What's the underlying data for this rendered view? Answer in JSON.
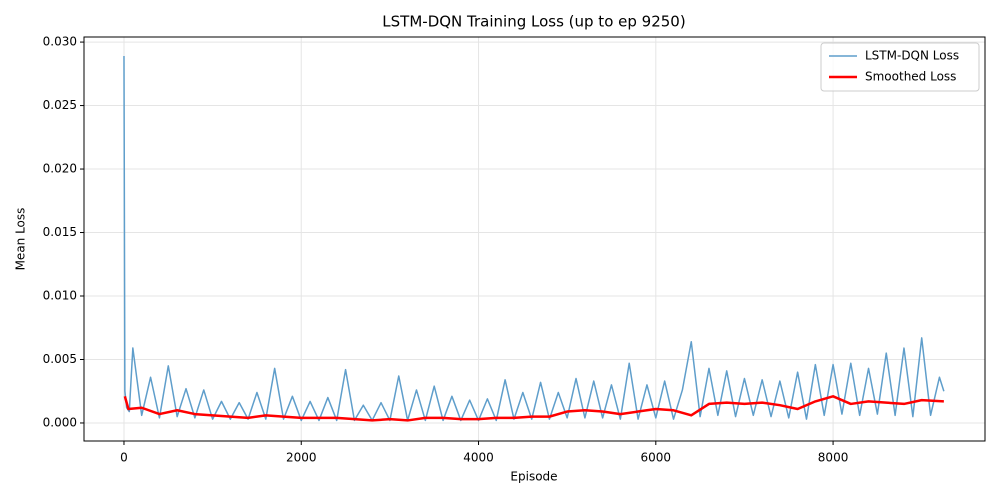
{
  "chart_data": {
    "type": "line",
    "title": "LSTM-DQN Training Loss (up to ep 9250)",
    "x_label": "Episode",
    "y_label": "Mean Loss",
    "xlim": [
      -451,
      9714
    ],
    "ylim": [
      -0.00142,
      0.0304
    ],
    "xticks": [
      0,
      2000,
      4000,
      6000,
      8000
    ],
    "yticks": [
      {
        "value": 0,
        "label": "0.000"
      },
      {
        "value": 0.005,
        "label": "0.005"
      },
      {
        "value": 0.01,
        "label": "0.010"
      },
      {
        "value": 0.015,
        "label": "0.015"
      },
      {
        "value": 0.02,
        "label": "0.020"
      },
      {
        "value": 0.025,
        "label": "0.025"
      },
      {
        "value": 0.03,
        "label": "0.030"
      }
    ],
    "grid": true,
    "legend": "upper right",
    "series": [
      {
        "name": "LSTM-DQN Loss",
        "color": "#5f9ecb",
        "width": 1.5,
        "x": [
          0,
          10,
          30,
          60,
          100,
          200,
          300,
          400,
          500,
          600,
          700,
          800,
          900,
          1000,
          1100,
          1200,
          1300,
          1400,
          1500,
          1600,
          1700,
          1800,
          1900,
          2000,
          2100,
          2200,
          2300,
          2400,
          2500,
          2600,
          2700,
          2800,
          2900,
          3000,
          3100,
          3200,
          3300,
          3400,
          3500,
          3600,
          3700,
          3800,
          3900,
          4000,
          4100,
          4200,
          4300,
          4400,
          4500,
          4600,
          4700,
          4800,
          4900,
          5000,
          5100,
          5200,
          5300,
          5400,
          5500,
          5600,
          5700,
          5800,
          5900,
          6000,
          6100,
          6200,
          6300,
          6400,
          6500,
          6600,
          6700,
          6800,
          6900,
          7000,
          7100,
          7200,
          7300,
          7400,
          7500,
          7600,
          7700,
          7800,
          7900,
          8000,
          8100,
          8200,
          8300,
          8400,
          8500,
          8600,
          8700,
          8800,
          8900,
          9000,
          9100,
          9200,
          9250
        ],
        "values": [
          0.0289,
          0.0025,
          0.0012,
          0.0009,
          0.0059,
          0.0006,
          0.0036,
          0.0004,
          0.0045,
          0.0005,
          0.0027,
          0.0004,
          0.0026,
          0.0003,
          0.0017,
          0.0003,
          0.0016,
          0.0003,
          0.0024,
          0.0003,
          0.0043,
          0.0003,
          0.0021,
          0.0002,
          0.0017,
          0.0002,
          0.002,
          0.0002,
          0.0042,
          0.0002,
          0.0014,
          0.0002,
          0.0016,
          0.0002,
          0.0037,
          0.0002,
          0.0026,
          0.0002,
          0.0029,
          0.0002,
          0.0021,
          0.0002,
          0.0018,
          0.0002,
          0.0019,
          0.0002,
          0.0034,
          0.0003,
          0.0024,
          0.0003,
          0.0032,
          0.0003,
          0.0024,
          0.0004,
          0.0035,
          0.0004,
          0.0033,
          0.0004,
          0.003,
          0.0003,
          0.0047,
          0.0003,
          0.003,
          0.0004,
          0.0033,
          0.0003,
          0.0026,
          0.0064,
          0.0005,
          0.0043,
          0.0006,
          0.0041,
          0.0005,
          0.0035,
          0.0006,
          0.0034,
          0.0005,
          0.0033,
          0.0004,
          0.004,
          0.0003,
          0.0046,
          0.0006,
          0.0046,
          0.0007,
          0.0047,
          0.0006,
          0.0043,
          0.0007,
          0.0055,
          0.0006,
          0.0059,
          0.0005,
          0.0067,
          0.0006,
          0.0036,
          0.0025
        ]
      },
      {
        "name": "Smoothed Loss",
        "color": "#ff0000",
        "width": 2.5,
        "x": [
          10,
          50,
          200,
          400,
          600,
          800,
          1000,
          1200,
          1400,
          1600,
          1800,
          2000,
          2200,
          2400,
          2600,
          2800,
          3000,
          3200,
          3400,
          3600,
          3800,
          4000,
          4200,
          4400,
          4600,
          4800,
          5000,
          5200,
          5400,
          5600,
          5800,
          6000,
          6200,
          6400,
          6600,
          6800,
          7000,
          7200,
          7400,
          7600,
          7800,
          8000,
          8200,
          8400,
          8600,
          8800,
          9000,
          9250
        ],
        "values": [
          0.0021,
          0.0011,
          0.0012,
          0.0007,
          0.001,
          0.0007,
          0.0006,
          0.0005,
          0.0004,
          0.0006,
          0.0005,
          0.0004,
          0.0004,
          0.0004,
          0.0003,
          0.0002,
          0.0003,
          0.0002,
          0.0004,
          0.0004,
          0.0003,
          0.0003,
          0.0004,
          0.0004,
          0.0005,
          0.0005,
          0.0009,
          0.001,
          0.0009,
          0.0007,
          0.0009,
          0.0011,
          0.001,
          0.0006,
          0.0015,
          0.0016,
          0.0015,
          0.0016,
          0.0014,
          0.0011,
          0.0017,
          0.0021,
          0.0015,
          0.0017,
          0.0016,
          0.0015,
          0.0018,
          0.0017
        ]
      }
    ]
  }
}
